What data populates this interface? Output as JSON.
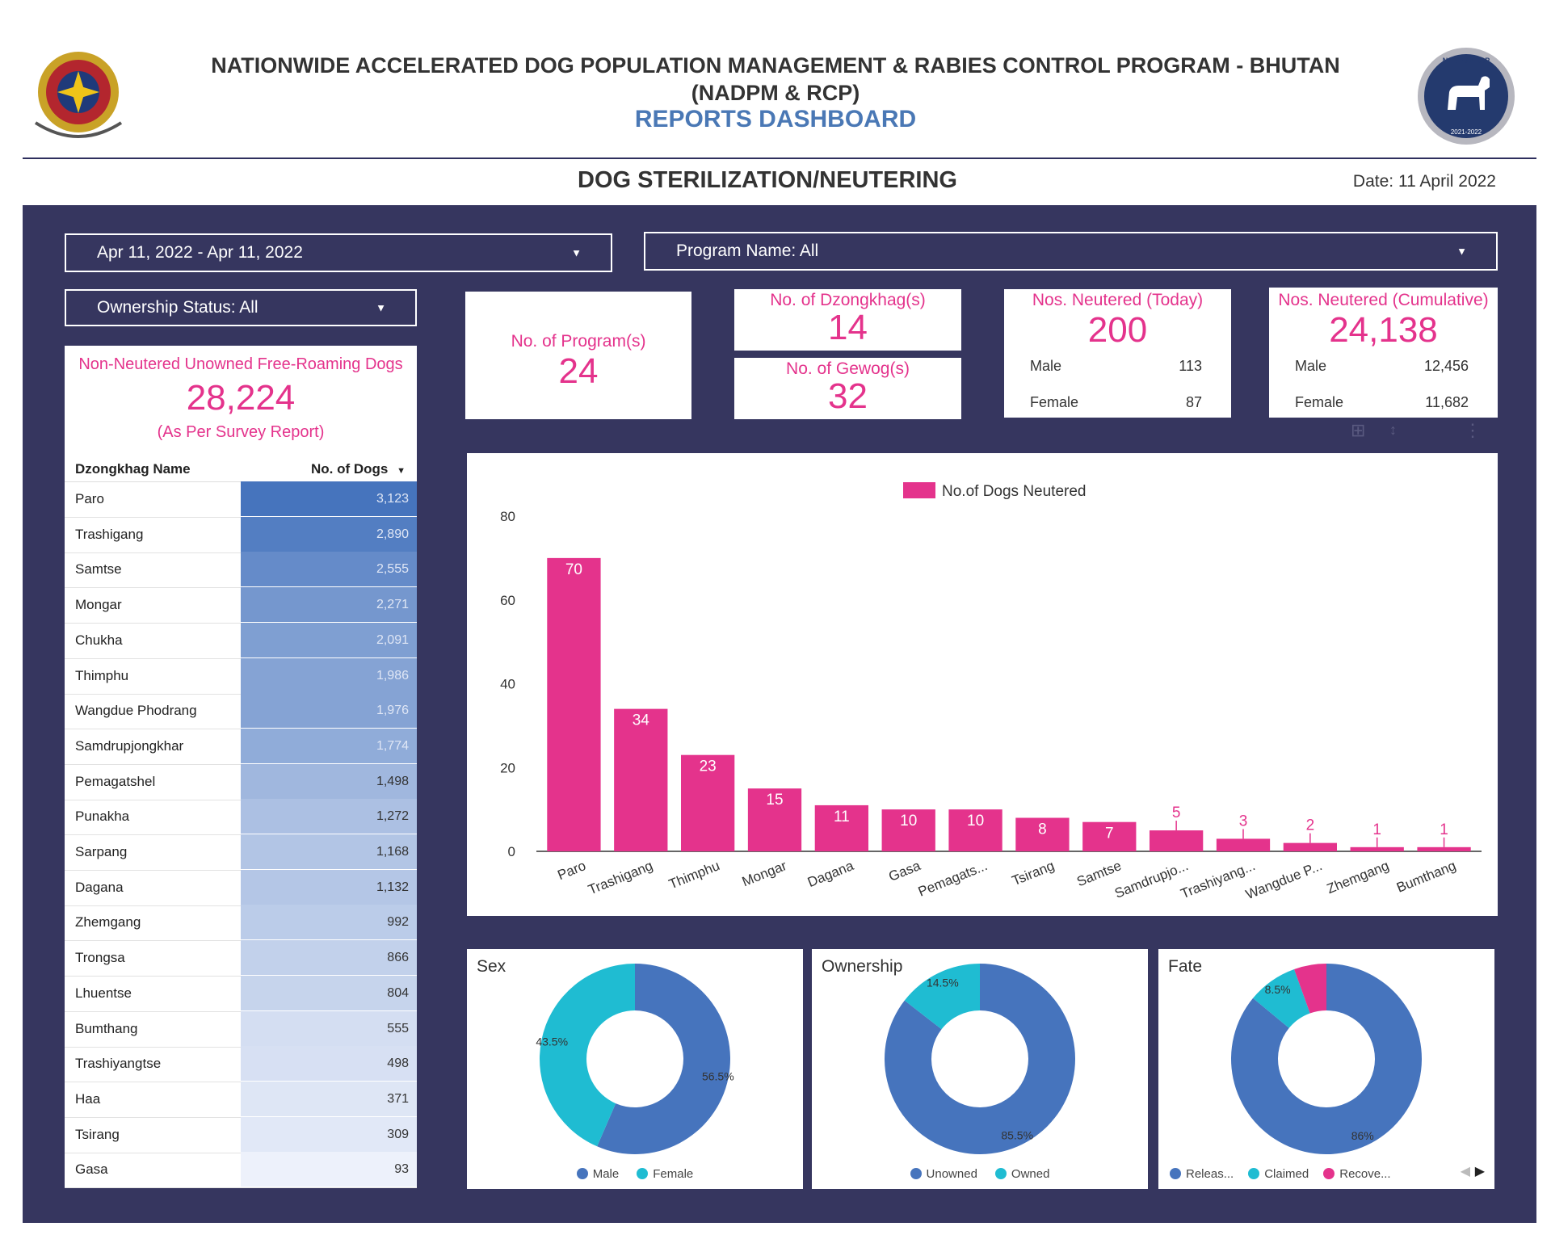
{
  "header": {
    "title_line1": "NATIONWIDE ACCELERATED DOG POPULATION MANAGEMENT & RABIES CONTROL PROGRAM - BHUTAN",
    "title_line2": "(NADPM & RCP)",
    "subtitle": "REPORTS DASHBOARD",
    "page_title": "DOG STERILIZATION/NEUTERING",
    "date": "Date: 11 April 2022",
    "right_logo_text_top": "NADPM&RCP",
    "right_logo_text_bottom": "2021-2022"
  },
  "filters": {
    "date_range": "Apr 11, 2022 - Apr 11, 2022",
    "program": "Program Name: All",
    "ownership": "Ownership Status: All"
  },
  "kpis": {
    "programs": {
      "label": "No. of Program(s)",
      "value": "24"
    },
    "dzongkhags": {
      "label": "No. of Dzongkhag(s)",
      "value": "14"
    },
    "gewogs": {
      "label": "No. of Gewog(s)",
      "value": "32"
    },
    "today": {
      "label": "Nos. Neutered (Today)",
      "value": "200",
      "male_label": "Male",
      "male": "113",
      "female_label": "Female",
      "female": "87"
    },
    "cumulative": {
      "label": "Nos. Neutered (Cumulative)",
      "value": "24,138",
      "male_label": "Male",
      "male": "12,456",
      "female_label": "Female",
      "female": "11,682"
    }
  },
  "survey": {
    "label": "Non-Neutered Unowned Free-Roaming Dogs",
    "value": "28,224",
    "note": "(As Per Survey Report)",
    "col_name": "Dzongkhag Name",
    "col_value": "No. of Dogs",
    "rows": [
      {
        "name": "Paro",
        "value": "3,123"
      },
      {
        "name": "Trashigang",
        "value": "2,890"
      },
      {
        "name": "Samtse",
        "value": "2,555"
      },
      {
        "name": "Mongar",
        "value": "2,271"
      },
      {
        "name": "Chukha",
        "value": "2,091"
      },
      {
        "name": "Thimphu",
        "value": "1,986"
      },
      {
        "name": "Wangdue Phodrang",
        "value": "1,976"
      },
      {
        "name": "Samdrupjongkhar",
        "value": "1,774"
      },
      {
        "name": "Pemagatshel",
        "value": "1,498"
      },
      {
        "name": "Punakha",
        "value": "1,272"
      },
      {
        "name": "Sarpang",
        "value": "1,168"
      },
      {
        "name": "Dagana",
        "value": "1,132"
      },
      {
        "name": "Zhemgang",
        "value": "992"
      },
      {
        "name": "Trongsa",
        "value": "866"
      },
      {
        "name": "Lhuentse",
        "value": "804"
      },
      {
        "name": "Bumthang",
        "value": "555"
      },
      {
        "name": "Trashiyangtse",
        "value": "498"
      },
      {
        "name": "Haa",
        "value": "371"
      },
      {
        "name": "Tsirang",
        "value": "309"
      },
      {
        "name": "Gasa",
        "value": "93"
      }
    ]
  },
  "chart_data": [
    {
      "type": "bar",
      "title": "",
      "legend": "No.of Dogs Neutered",
      "categories": [
        "Paro",
        "Trashigang",
        "Thimphu",
        "Mongar",
        "Dagana",
        "Gasa",
        "Pemagats...",
        "Tsirang",
        "Samtse",
        "Samdrupjo...",
        "Trashiyang...",
        "Wangdue P...",
        "Zhemgang",
        "Bumthang"
      ],
      "series": [
        {
          "name": "No.of Dogs Neutered",
          "values": [
            70,
            34,
            23,
            15,
            11,
            10,
            10,
            8,
            7,
            5,
            3,
            2,
            1,
            1
          ]
        }
      ],
      "yticks": [
        "0",
        "20",
        "40",
        "60",
        "80"
      ],
      "ylim": [
        0,
        80
      ],
      "color": "#e4338c"
    },
    {
      "type": "pie",
      "title": "Sex",
      "labels": [
        "Male",
        "Female"
      ],
      "values": [
        56.5,
        43.5
      ],
      "value_labels": [
        "56.5%",
        "43.5%"
      ],
      "colors": [
        "#4674bd",
        "#1fbcd2"
      ]
    },
    {
      "type": "pie",
      "title": "Ownership",
      "labels": [
        "Unowned",
        "Owned"
      ],
      "values": [
        85.5,
        14.5
      ],
      "value_labels": [
        "85.5%",
        "14.5%"
      ],
      "colors": [
        "#4674bd",
        "#1fbcd2"
      ]
    },
    {
      "type": "pie",
      "title": "Fate",
      "labels": [
        "Releas...",
        "Claimed",
        "Recove..."
      ],
      "values": [
        86,
        8.5,
        5.5
      ],
      "value_labels": [
        "86%",
        "8.5%",
        ""
      ],
      "colors": [
        "#4674bd",
        "#1fbcd2",
        "#e4338c"
      ]
    }
  ]
}
